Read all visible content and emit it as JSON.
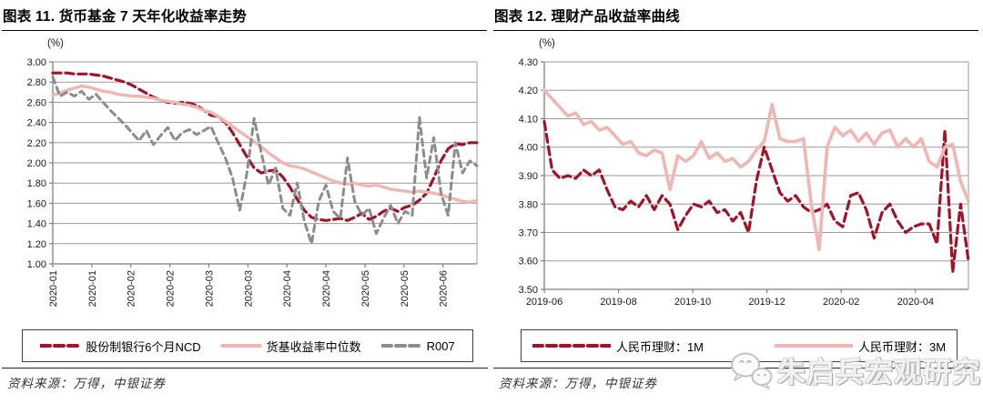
{
  "report": {
    "panels": [
      {
        "title": "图表 11. 货币基金 7 天年化收益率走势",
        "unit": "(%)",
        "source": "资料来源：万得，中银证券"
      },
      {
        "title": "图表 12. 理财产品收益率曲线",
        "unit": "(%)",
        "source": "资料来源：万得，中银证券"
      }
    ],
    "watermark": {
      "text": "朱启兵宏观研究",
      "icon": "wechat-chat-bubbles-icon"
    }
  },
  "colors": {
    "dark_red": "#a31226",
    "pink": "#f2b6b2",
    "gray": "#8c8c8c",
    "grid": "#9a9a9a",
    "axis": "#7f7f7f"
  },
  "chart_data": [
    {
      "type": "line",
      "title": "图表 11. 货币基金 7 天年化收益率走势",
      "ylabel": "(%)",
      "ylim": [
        1.0,
        3.0
      ],
      "yticks": [
        "3.00",
        "2.80",
        "2.60",
        "2.40",
        "2.20",
        "2.00",
        "1.80",
        "1.60",
        "1.40",
        "1.20",
        "1.00"
      ],
      "xticks": [
        "2020-01",
        "2020-01",
        "2020-02",
        "2020-02",
        "2020-03",
        "2020-03",
        "2020-04",
        "2020-04",
        "2020-05",
        "2020-05",
        "2020-06"
      ],
      "xtick_rotation": 90,
      "xtick_span": 0.92,
      "grid": "horizontal",
      "legend_position": "bottom",
      "series": [
        {
          "name": "股份制银行6个月NCD",
          "color": "#a31226",
          "style": "dashed",
          "dash": "9 5",
          "width": 3.2,
          "values": [
            2.89,
            2.89,
            2.89,
            2.88,
            2.88,
            2.88,
            2.87,
            2.86,
            2.84,
            2.82,
            2.8,
            2.77,
            2.73,
            2.69,
            2.65,
            2.62,
            2.6,
            2.59,
            2.6,
            2.59,
            2.57,
            2.52,
            2.47,
            2.46,
            2.4,
            2.3,
            2.18,
            2.06,
            1.95,
            1.9,
            1.92,
            1.93,
            1.86,
            1.76,
            1.64,
            1.53,
            1.46,
            1.44,
            1.43,
            1.44,
            1.45,
            1.43,
            1.46,
            1.5,
            1.44,
            1.47,
            1.52,
            1.55,
            1.52,
            1.56,
            1.58,
            1.63,
            1.7,
            1.85,
            2.02,
            2.14,
            2.19,
            2.18,
            2.2,
            2.2
          ]
        },
        {
          "name": "货基收益率中位数",
          "color": "#f2b6b2",
          "style": "solid",
          "dash": "",
          "width": 3.4,
          "values": [
            2.67,
            2.69,
            2.72,
            2.74,
            2.76,
            2.75,
            2.73,
            2.71,
            2.7,
            2.68,
            2.67,
            2.66,
            2.66,
            2.65,
            2.64,
            2.62,
            2.61,
            2.6,
            2.58,
            2.57,
            2.55,
            2.52,
            2.5,
            2.46,
            2.41,
            2.36,
            2.31,
            2.26,
            2.21,
            2.16,
            2.1,
            2.05,
            2.0,
            1.97,
            1.96,
            1.94,
            1.91,
            1.88,
            1.85,
            1.82,
            1.8,
            1.79,
            1.8,
            1.78,
            1.77,
            1.78,
            1.76,
            1.74,
            1.73,
            1.72,
            1.71,
            1.72,
            1.71,
            1.7,
            1.68,
            1.66,
            1.64,
            1.62,
            1.61,
            1.63
          ]
        },
        {
          "name": "R007",
          "color": "#8c8c8c",
          "style": "dashed",
          "dash": "7 5",
          "width": 3.0,
          "values": [
            2.85,
            2.66,
            2.7,
            2.66,
            2.71,
            2.63,
            2.68,
            2.6,
            2.52,
            2.45,
            2.38,
            2.3,
            2.22,
            2.32,
            2.18,
            2.27,
            2.35,
            2.22,
            2.3,
            2.33,
            2.28,
            2.32,
            2.36,
            2.2,
            2.05,
            1.85,
            1.53,
            1.9,
            2.44,
            2.1,
            1.78,
            1.95,
            1.55,
            1.48,
            1.8,
            1.42,
            1.2,
            1.62,
            1.78,
            1.52,
            1.45,
            2.05,
            1.62,
            1.48,
            1.55,
            1.3,
            1.45,
            1.58,
            1.4,
            1.52,
            1.48,
            2.45,
            1.85,
            2.25,
            1.7,
            1.48,
            2.2,
            1.9,
            2.02,
            1.97
          ]
        }
      ]
    },
    {
      "type": "line",
      "title": "图表 12. 理财产品收益率曲线",
      "ylabel": "(%)",
      "ylim": [
        3.5,
        4.3
      ],
      "yticks": [
        "4.30",
        "4.20",
        "4.10",
        "4.00",
        "3.90",
        "3.80",
        "3.70",
        "3.60",
        "3.50"
      ],
      "xticks": [
        "2019-06",
        "2019-08",
        "2019-10",
        "2019-12",
        "2020-02",
        "2020-04"
      ],
      "xtick_rotation": 0,
      "xtick_span": 0.875,
      "grid": "horizontal",
      "legend_position": "bottom",
      "series": [
        {
          "name": "人民币理财：1M",
          "color": "#a31226",
          "style": "dashed",
          "dash": "9 5",
          "width": 3.2,
          "values": [
            4.09,
            3.92,
            3.89,
            3.9,
            3.89,
            3.92,
            3.9,
            3.92,
            3.85,
            3.79,
            3.78,
            3.81,
            3.79,
            3.83,
            3.78,
            3.83,
            3.8,
            3.71,
            3.76,
            3.8,
            3.79,
            3.81,
            3.77,
            3.78,
            3.74,
            3.77,
            3.7,
            3.88,
            4.0,
            3.92,
            3.84,
            3.81,
            3.83,
            3.79,
            3.77,
            3.78,
            3.8,
            3.74,
            3.72,
            3.83,
            3.84,
            3.78,
            3.68,
            3.77,
            3.8,
            3.74,
            3.7,
            3.72,
            3.73,
            3.73,
            3.66,
            4.06,
            3.56,
            3.8,
            3.6
          ]
        },
        {
          "name": "人民币理财：3M",
          "color": "#f2b6b2",
          "style": "solid",
          "dash": "",
          "width": 3.6,
          "values": [
            4.2,
            4.17,
            4.14,
            4.11,
            4.12,
            4.08,
            4.09,
            4.06,
            4.07,
            4.04,
            4.01,
            4.02,
            3.98,
            3.97,
            3.99,
            3.98,
            3.85,
            3.97,
            3.95,
            3.97,
            4.02,
            3.96,
            3.98,
            3.95,
            3.96,
            3.93,
            3.95,
            3.99,
            4.02,
            4.15,
            4.03,
            4.02,
            4.02,
            4.03,
            3.8,
            3.64,
            4.0,
            4.07,
            4.04,
            4.06,
            4.02,
            4.05,
            4.01,
            4.05,
            4.06,
            4.0,
            4.03,
            4.0,
            4.03,
            3.95,
            3.93,
            4.0,
            4.01,
            3.88,
            3.81
          ]
        }
      ]
    }
  ]
}
